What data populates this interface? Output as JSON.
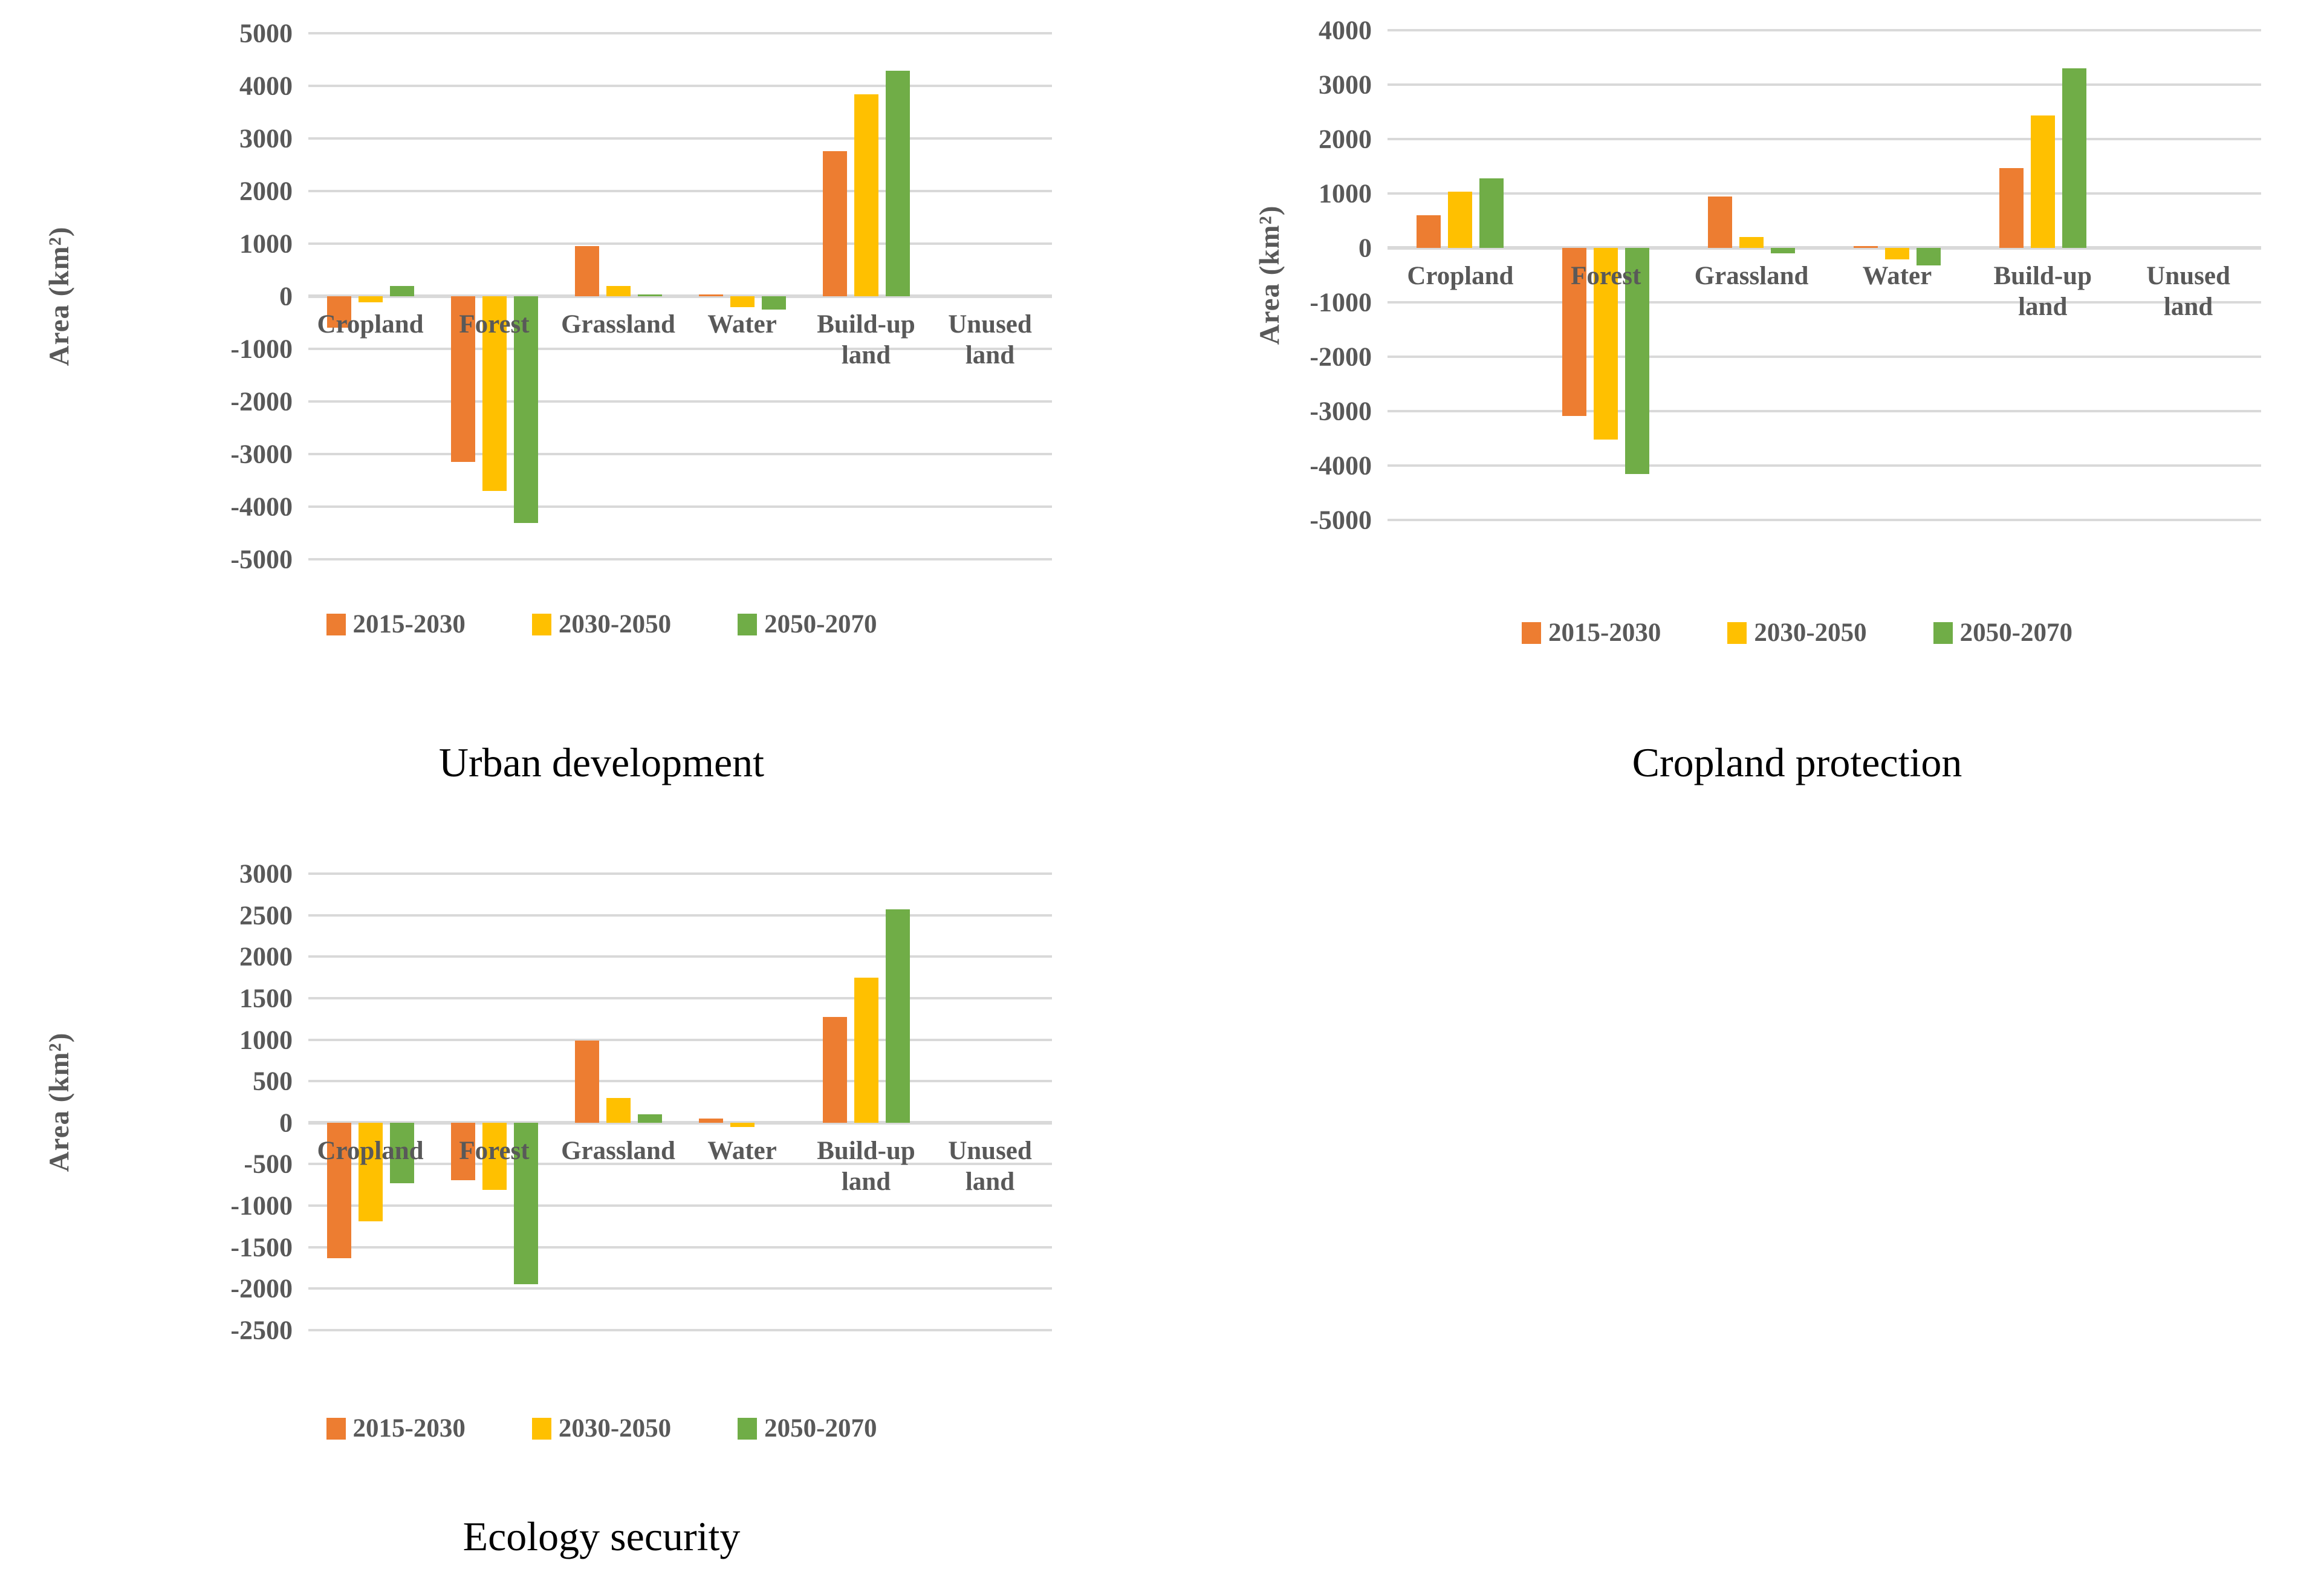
{
  "figure": {
    "background": "#FFFFFF",
    "grid_color": "#D9D9D9",
    "axis_text_color": "#595959",
    "title_text_color": "#000000",
    "legend_items": [
      {
        "label": "2015-2030",
        "color": "#ED7D31"
      },
      {
        "label": "2030-2050",
        "color": "#FFC000"
      },
      {
        "label": "2050-2070",
        "color": "#70AD47"
      }
    ]
  },
  "chart_data": [
    {
      "type": "bar",
      "title": "Urban development",
      "ylabel": "Area (km²)",
      "xlabel": "",
      "ylim": [
        -5000,
        5000
      ],
      "ystep": 1000,
      "yticks": [
        5000,
        4000,
        3000,
        2000,
        1000,
        0,
        -1000,
        -2000,
        -3000,
        -4000,
        -5000
      ],
      "grid": true,
      "legend_position": "bottom",
      "categories": [
        "Cropland",
        "Forest",
        "Grassland",
        "Water",
        "Build-up\nland",
        "Unused\nland"
      ],
      "series": [
        {
          "name": "2015-2030",
          "color": "#ED7D31",
          "values": [
            -600,
            -3150,
            950,
            30,
            2760,
            0
          ]
        },
        {
          "name": "2030-2050",
          "color": "#FFC000",
          "values": [
            -120,
            -3700,
            200,
            -210,
            3840,
            0
          ]
        },
        {
          "name": "2050-2070",
          "color": "#70AD47",
          "values": [
            200,
            -4310,
            30,
            -250,
            4290,
            0
          ]
        }
      ]
    },
    {
      "type": "bar",
      "title": "Cropland protection",
      "ylabel": "Area (km²)",
      "xlabel": "",
      "ylim": [
        -5000,
        4000
      ],
      "ystep": 1000,
      "yticks": [
        4000,
        3000,
        2000,
        1000,
        0,
        -1000,
        -2000,
        -3000,
        -4000,
        -5000
      ],
      "grid": true,
      "legend_position": "bottom",
      "categories": [
        "Cropland",
        "Forest",
        "Grassland",
        "Water",
        "Build-up\nland",
        "Unused\nland"
      ],
      "series": [
        {
          "name": "2015-2030",
          "color": "#ED7D31",
          "values": [
            600,
            -3090,
            950,
            30,
            1470,
            0
          ]
        },
        {
          "name": "2030-2050",
          "color": "#FFC000",
          "values": [
            1030,
            -3520,
            200,
            -210,
            2430,
            0
          ]
        },
        {
          "name": "2050-2070",
          "color": "#70AD47",
          "values": [
            1280,
            -4160,
            -100,
            -320,
            3300,
            0
          ]
        }
      ]
    },
    {
      "type": "bar",
      "title": "Ecology security",
      "ylabel": "Area (km²)",
      "xlabel": "",
      "ylim": [
        -2500,
        3000
      ],
      "ystep": 500,
      "yticks": [
        3000,
        2500,
        2000,
        1500,
        1000,
        500,
        0,
        -500,
        -1000,
        -1500,
        -2000,
        -2500
      ],
      "grid": true,
      "legend_position": "bottom",
      "categories": [
        "Cropland",
        "Forest",
        "Grassland",
        "Water",
        "Build-up\nland",
        "Unused\nland"
      ],
      "series": [
        {
          "name": "2015-2030",
          "color": "#ED7D31",
          "values": [
            -1630,
            -690,
            990,
            50,
            1270,
            0
          ]
        },
        {
          "name": "2030-2050",
          "color": "#FFC000",
          "values": [
            -1190,
            -810,
            300,
            -50,
            1750,
            0
          ]
        },
        {
          "name": "2050-2070",
          "color": "#70AD47",
          "values": [
            -730,
            -1950,
            100,
            0,
            2570,
            0
          ]
        }
      ]
    }
  ]
}
